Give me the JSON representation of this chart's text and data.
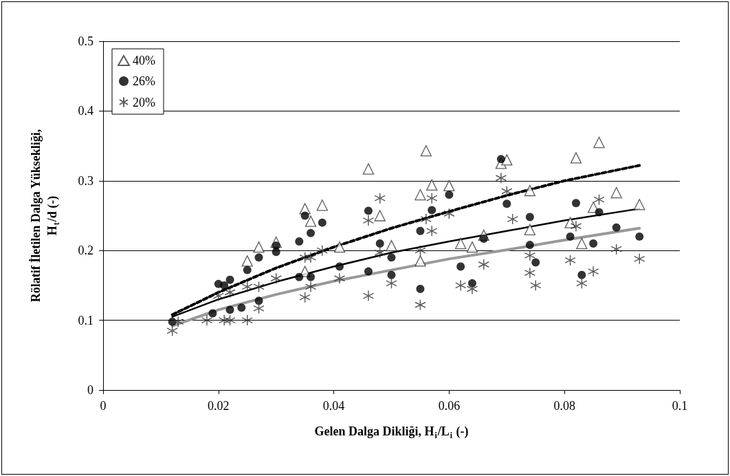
{
  "chart_data": {
    "type": "scatter",
    "xlabel": "Gelen Dalga Dikliği, H$_{i}$/L$_{i}$ (-)",
    "ylabel": "Rölatif İletilen Dalga Yüksekliği,\nH$_{t}$/d (-)",
    "xlim": [
      0,
      0.1
    ],
    "xticks": [
      0,
      0.02,
      0.04,
      0.06,
      0.08,
      0.1
    ],
    "ylim": [
      0,
      0.5
    ],
    "yticks": [
      0,
      0.1,
      0.2,
      0.3,
      0.4,
      0.5
    ],
    "grid": "y",
    "legend": "top left",
    "series": [
      {
        "name": "40%",
        "color": "#333333",
        "marker": "triangle",
        "x": [
          0.025,
          0.027,
          0.03,
          0.035,
          0.035,
          0.036,
          0.038,
          0.041,
          0.046,
          0.048,
          0.05,
          0.055,
          0.055,
          0.056,
          0.057,
          0.06,
          0.062,
          0.064,
          0.066,
          0.069,
          0.07,
          0.074,
          0.074,
          0.081,
          0.082,
          0.083,
          0.085,
          0.086,
          0.089,
          0.093
        ],
        "values": [
          0.185,
          0.205,
          0.212,
          0.26,
          0.17,
          0.242,
          0.265,
          0.205,
          0.317,
          0.25,
          0.207,
          0.28,
          0.185,
          0.343,
          0.294,
          0.293,
          0.21,
          0.205,
          0.222,
          0.325,
          0.33,
          0.286,
          0.23,
          0.24,
          0.333,
          0.21,
          0.262,
          0.355,
          0.283,
          0.266
        ]
      },
      {
        "name": "26%",
        "color": "#000000",
        "marker": "circle",
        "x": [
          0.012,
          0.019,
          0.02,
          0.021,
          0.022,
          0.022,
          0.024,
          0.025,
          0.027,
          0.027,
          0.03,
          0.03,
          0.034,
          0.034,
          0.035,
          0.036,
          0.036,
          0.038,
          0.041,
          0.046,
          0.046,
          0.048,
          0.05,
          0.05,
          0.055,
          0.055,
          0.057,
          0.06,
          0.062,
          0.064,
          0.066,
          0.069,
          0.07,
          0.074,
          0.074,
          0.075,
          0.081,
          0.082,
          0.083,
          0.085,
          0.086,
          0.089,
          0.093
        ],
        "values": [
          0.098,
          0.11,
          0.152,
          0.15,
          0.158,
          0.115,
          0.118,
          0.172,
          0.19,
          0.128,
          0.198,
          0.207,
          0.162,
          0.213,
          0.25,
          0.225,
          0.162,
          0.24,
          0.177,
          0.257,
          0.17,
          0.21,
          0.19,
          0.165,
          0.145,
          0.228,
          0.258,
          0.28,
          0.177,
          0.153,
          0.217,
          0.331,
          0.267,
          0.248,
          0.208,
          0.183,
          0.22,
          0.268,
          0.165,
          0.21,
          0.255,
          0.233,
          0.22
        ]
      },
      {
        "name": "20%",
        "color": "#333333",
        "marker": "cross",
        "x": [
          0.012,
          0.013,
          0.018,
          0.02,
          0.021,
          0.022,
          0.022,
          0.025,
          0.025,
          0.027,
          0.027,
          0.03,
          0.035,
          0.035,
          0.036,
          0.036,
          0.038,
          0.041,
          0.046,
          0.046,
          0.048,
          0.048,
          0.05,
          0.055,
          0.055,
          0.056,
          0.057,
          0.057,
          0.06,
          0.062,
          0.064,
          0.066,
          0.069,
          0.07,
          0.071,
          0.074,
          0.074,
          0.075,
          0.081,
          0.082,
          0.083,
          0.085,
          0.086,
          0.089,
          0.093
        ],
        "values": [
          0.085,
          0.098,
          0.1,
          0.135,
          0.1,
          0.14,
          0.1,
          0.1,
          0.148,
          0.148,
          0.117,
          0.16,
          0.133,
          0.19,
          0.148,
          0.19,
          0.2,
          0.16,
          0.135,
          0.243,
          0.275,
          0.197,
          0.153,
          0.122,
          0.2,
          0.245,
          0.275,
          0.228,
          0.253,
          0.15,
          0.145,
          0.18,
          0.304,
          0.285,
          0.245,
          0.193,
          0.168,
          0.15,
          0.186,
          0.235,
          0.153,
          0.17,
          0.273,
          0.202,
          0.188
        ]
      },
      {
        "type": "line",
        "color": "#000000",
        "line_style": "dashed",
        "marker": "none",
        "x": [
          0.012,
          0.02,
          0.03,
          0.04,
          0.05,
          0.06,
          0.07,
          0.08,
          0.093
        ],
        "values": [
          0.108,
          0.14,
          0.175,
          0.205,
          0.232,
          0.256,
          0.279,
          0.3,
          0.322
        ]
      },
      {
        "type": "line",
        "color": "#000000",
        "line_style": "solid",
        "marker": "none",
        "x": [
          0.012,
          0.02,
          0.03,
          0.04,
          0.05,
          0.06,
          0.07,
          0.08,
          0.093
        ],
        "values": [
          0.105,
          0.13,
          0.155,
          0.177,
          0.197,
          0.213,
          0.228,
          0.243,
          0.26
        ]
      },
      {
        "type": "line",
        "color": "#999999",
        "line_style": "solid",
        "marker": "none",
        "x": [
          0.012,
          0.02,
          0.03,
          0.04,
          0.05,
          0.06,
          0.07,
          0.08,
          0.093
        ],
        "values": [
          0.092,
          0.115,
          0.137,
          0.156,
          0.172,
          0.188,
          0.201,
          0.215,
          0.232
        ]
      }
    ]
  }
}
